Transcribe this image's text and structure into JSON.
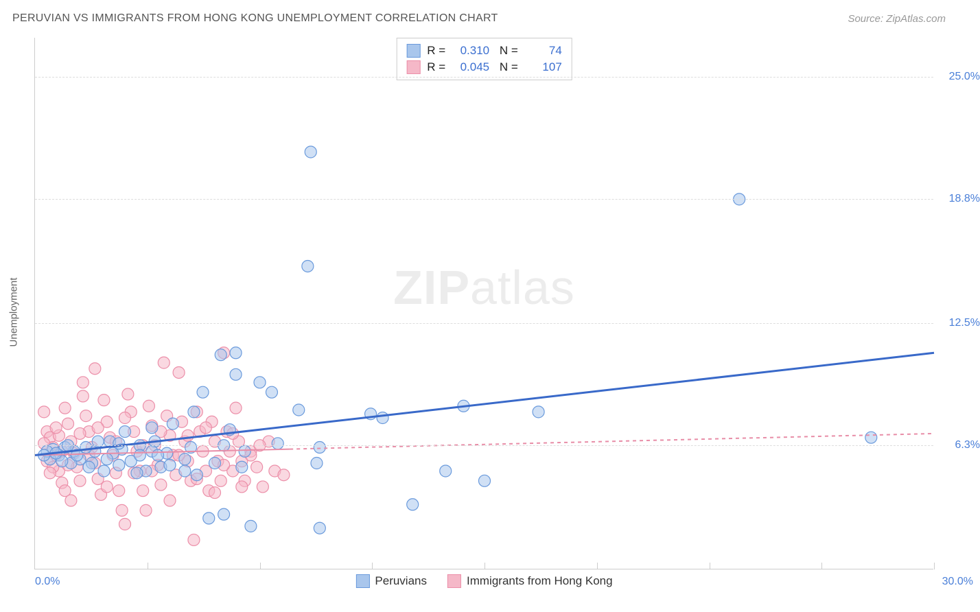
{
  "title": "PERUVIAN VS IMMIGRANTS FROM HONG KONG UNEMPLOYMENT CORRELATION CHART",
  "source": "Source: ZipAtlas.com",
  "watermark_a": "ZIP",
  "watermark_b": "atlas",
  "ylabel": "Unemployment",
  "x_start": "0.0%",
  "x_end": "30.0%",
  "chart": {
    "type": "scatter",
    "xlim": [
      0,
      30
    ],
    "ylim": [
      0,
      27
    ],
    "x_ticks": [
      0,
      3.75,
      7.5,
      11.25,
      15,
      18.75,
      22.5,
      26.25,
      30
    ],
    "y_gridlines": [
      {
        "y": 6.3,
        "label": "6.3%"
      },
      {
        "y": 12.5,
        "label": "12.5%"
      },
      {
        "y": 18.8,
        "label": "18.8%"
      },
      {
        "y": 25.0,
        "label": "25.0%"
      }
    ],
    "background_color": "#ffffff",
    "grid_color": "#dddddd",
    "marker_radius": 8.5,
    "marker_opacity": 0.55,
    "marker_stroke_width": 1.2,
    "series": [
      {
        "name": "Peruvians",
        "label": "Peruvians",
        "color_fill": "#a9c6ec",
        "color_stroke": "#6a9adc",
        "trend_color": "#3969c9",
        "trend_width": 3,
        "trend_dash": "none",
        "trend": {
          "x1": 0,
          "y1": 5.8,
          "x2": 30,
          "y2": 11.0
        },
        "R": "0.310",
        "N": "74",
        "points": [
          [
            9.2,
            21.2
          ],
          [
            9.1,
            15.4
          ],
          [
            23.5,
            18.8
          ],
          [
            27.9,
            6.7
          ],
          [
            16.8,
            8.0
          ],
          [
            15.0,
            4.5
          ],
          [
            12.6,
            3.3
          ],
          [
            11.2,
            7.9
          ],
          [
            11.6,
            7.7
          ],
          [
            13.7,
            5.0
          ],
          [
            9.5,
            2.1
          ],
          [
            9.4,
            5.4
          ],
          [
            9.5,
            6.2
          ],
          [
            7.5,
            9.5
          ],
          [
            7.9,
            9.0
          ],
          [
            6.7,
            9.9
          ],
          [
            6.2,
            10.9
          ],
          [
            8.8,
            8.1
          ],
          [
            8.1,
            6.4
          ],
          [
            7.0,
            6.0
          ],
          [
            6.3,
            6.3
          ],
          [
            6.0,
            5.4
          ],
          [
            5.6,
            9.0
          ],
          [
            5.3,
            8.0
          ],
          [
            5.2,
            6.2
          ],
          [
            5.0,
            5.6
          ],
          [
            4.6,
            7.4
          ],
          [
            4.4,
            5.9
          ],
          [
            4.2,
            5.2
          ],
          [
            4.0,
            6.5
          ],
          [
            3.9,
            7.2
          ],
          [
            3.7,
            5.0
          ],
          [
            3.5,
            6.3
          ],
          [
            3.4,
            4.9
          ],
          [
            3.0,
            7.0
          ],
          [
            3.2,
            5.5
          ],
          [
            2.9,
            6.1
          ],
          [
            2.8,
            5.3
          ],
          [
            2.6,
            5.9
          ],
          [
            2.5,
            6.5
          ],
          [
            2.4,
            5.6
          ],
          [
            2.0,
            6.0
          ],
          [
            1.9,
            5.4
          ],
          [
            1.7,
            6.2
          ],
          [
            1.5,
            5.6
          ],
          [
            1.3,
            6.0
          ],
          [
            1.2,
            5.4
          ],
          [
            1.0,
            6.2
          ],
          [
            0.8,
            5.8
          ],
          [
            0.6,
            6.1
          ],
          [
            0.5,
            5.6
          ],
          [
            0.4,
            6.0
          ],
          [
            5.8,
            2.6
          ],
          [
            6.3,
            2.8
          ],
          [
            7.2,
            2.2
          ],
          [
            6.5,
            7.1
          ],
          [
            6.9,
            5.2
          ],
          [
            5.4,
            4.8
          ],
          [
            5.0,
            5.0
          ],
          [
            4.5,
            5.3
          ],
          [
            3.9,
            6.0
          ],
          [
            4.1,
            5.8
          ],
          [
            3.5,
            5.8
          ],
          [
            2.8,
            6.4
          ],
          [
            2.3,
            5.0
          ],
          [
            2.1,
            6.5
          ],
          [
            1.8,
            5.2
          ],
          [
            1.4,
            5.8
          ],
          [
            1.1,
            6.3
          ],
          [
            0.9,
            5.5
          ],
          [
            0.7,
            5.9
          ],
          [
            0.3,
            5.8
          ],
          [
            6.7,
            11.0
          ],
          [
            14.3,
            8.3
          ]
        ]
      },
      {
        "name": "Immigrants from Hong Kong",
        "label": "Immigrants from Hong Kong",
        "color_fill": "#f5b8c8",
        "color_stroke": "#ec8fa9",
        "trend_color": "#e88da7",
        "trend_width": 2,
        "trend_dash": "5,5",
        "trend_solid_until": 8.5,
        "trend": {
          "x1": 0,
          "y1": 5.8,
          "x2": 30,
          "y2": 6.9
        },
        "R": "0.045",
        "N": "107",
        "points": [
          [
            0.3,
            8.0
          ],
          [
            0.4,
            7.0
          ],
          [
            0.5,
            6.7
          ],
          [
            0.6,
            6.2
          ],
          [
            0.7,
            5.8
          ],
          [
            0.8,
            5.0
          ],
          [
            0.9,
            4.4
          ],
          [
            1.0,
            8.2
          ],
          [
            1.1,
            7.4
          ],
          [
            1.2,
            6.5
          ],
          [
            1.3,
            5.9
          ],
          [
            1.4,
            5.2
          ],
          [
            1.5,
            4.5
          ],
          [
            1.6,
            8.8
          ],
          [
            1.7,
            7.8
          ],
          [
            1.8,
            7.0
          ],
          [
            1.9,
            6.2
          ],
          [
            2.0,
            5.4
          ],
          [
            2.1,
            4.6
          ],
          [
            2.2,
            3.8
          ],
          [
            2.3,
            8.6
          ],
          [
            2.4,
            7.5
          ],
          [
            2.5,
            6.7
          ],
          [
            2.6,
            5.8
          ],
          [
            2.7,
            4.9
          ],
          [
            2.8,
            4.0
          ],
          [
            2.9,
            3.0
          ],
          [
            3.0,
            2.3
          ],
          [
            3.1,
            8.9
          ],
          [
            3.2,
            8.0
          ],
          [
            3.3,
            7.0
          ],
          [
            3.4,
            6.0
          ],
          [
            3.5,
            5.0
          ],
          [
            3.6,
            4.0
          ],
          [
            3.7,
            3.0
          ],
          [
            3.8,
            8.3
          ],
          [
            3.9,
            7.3
          ],
          [
            4.0,
            6.3
          ],
          [
            4.1,
            5.3
          ],
          [
            4.2,
            4.3
          ],
          [
            4.3,
            10.5
          ],
          [
            4.4,
            7.8
          ],
          [
            4.5,
            6.8
          ],
          [
            4.6,
            5.8
          ],
          [
            4.7,
            4.8
          ],
          [
            4.8,
            10.0
          ],
          [
            4.9,
            7.5
          ],
          [
            5.0,
            6.5
          ],
          [
            5.1,
            5.5
          ],
          [
            5.2,
            4.5
          ],
          [
            5.3,
            1.5
          ],
          [
            5.4,
            8.0
          ],
          [
            5.5,
            7.0
          ],
          [
            5.6,
            6.0
          ],
          [
            5.7,
            5.0
          ],
          [
            5.8,
            4.0
          ],
          [
            5.9,
            7.5
          ],
          [
            6.0,
            6.5
          ],
          [
            6.1,
            5.5
          ],
          [
            6.2,
            4.5
          ],
          [
            6.3,
            11.0
          ],
          [
            6.4,
            7.0
          ],
          [
            6.5,
            6.0
          ],
          [
            6.6,
            5.0
          ],
          [
            6.7,
            8.2
          ],
          [
            6.8,
            6.5
          ],
          [
            6.9,
            5.5
          ],
          [
            7.0,
            4.5
          ],
          [
            7.2,
            6.0
          ],
          [
            7.4,
            5.2
          ],
          [
            7.6,
            4.2
          ],
          [
            7.8,
            6.5
          ],
          [
            8.0,
            5.0
          ],
          [
            8.3,
            4.8
          ],
          [
            2.0,
            10.2
          ],
          [
            1.6,
            9.5
          ],
          [
            0.4,
            5.5
          ],
          [
            0.6,
            5.2
          ],
          [
            0.8,
            6.8
          ],
          [
            1.0,
            4.0
          ],
          [
            1.2,
            3.5
          ],
          [
            1.5,
            6.9
          ],
          [
            1.8,
            5.8
          ],
          [
            2.1,
            7.2
          ],
          [
            2.4,
            4.2
          ],
          [
            2.7,
            6.5
          ],
          [
            3.0,
            7.7
          ],
          [
            3.3,
            4.9
          ],
          [
            3.6,
            6.3
          ],
          [
            3.9,
            5.0
          ],
          [
            4.2,
            7.0
          ],
          [
            4.5,
            3.5
          ],
          [
            4.8,
            5.8
          ],
          [
            5.1,
            6.8
          ],
          [
            5.4,
            4.6
          ],
          [
            5.7,
            7.2
          ],
          [
            6.0,
            3.9
          ],
          [
            6.3,
            5.3
          ],
          [
            6.6,
            6.9
          ],
          [
            6.9,
            4.2
          ],
          [
            7.2,
            5.8
          ],
          [
            7.5,
            6.3
          ],
          [
            0.3,
            6.4
          ],
          [
            0.5,
            4.9
          ],
          [
            0.7,
            7.2
          ],
          [
            0.9,
            6.0
          ],
          [
            1.1,
            5.3
          ]
        ]
      }
    ]
  }
}
